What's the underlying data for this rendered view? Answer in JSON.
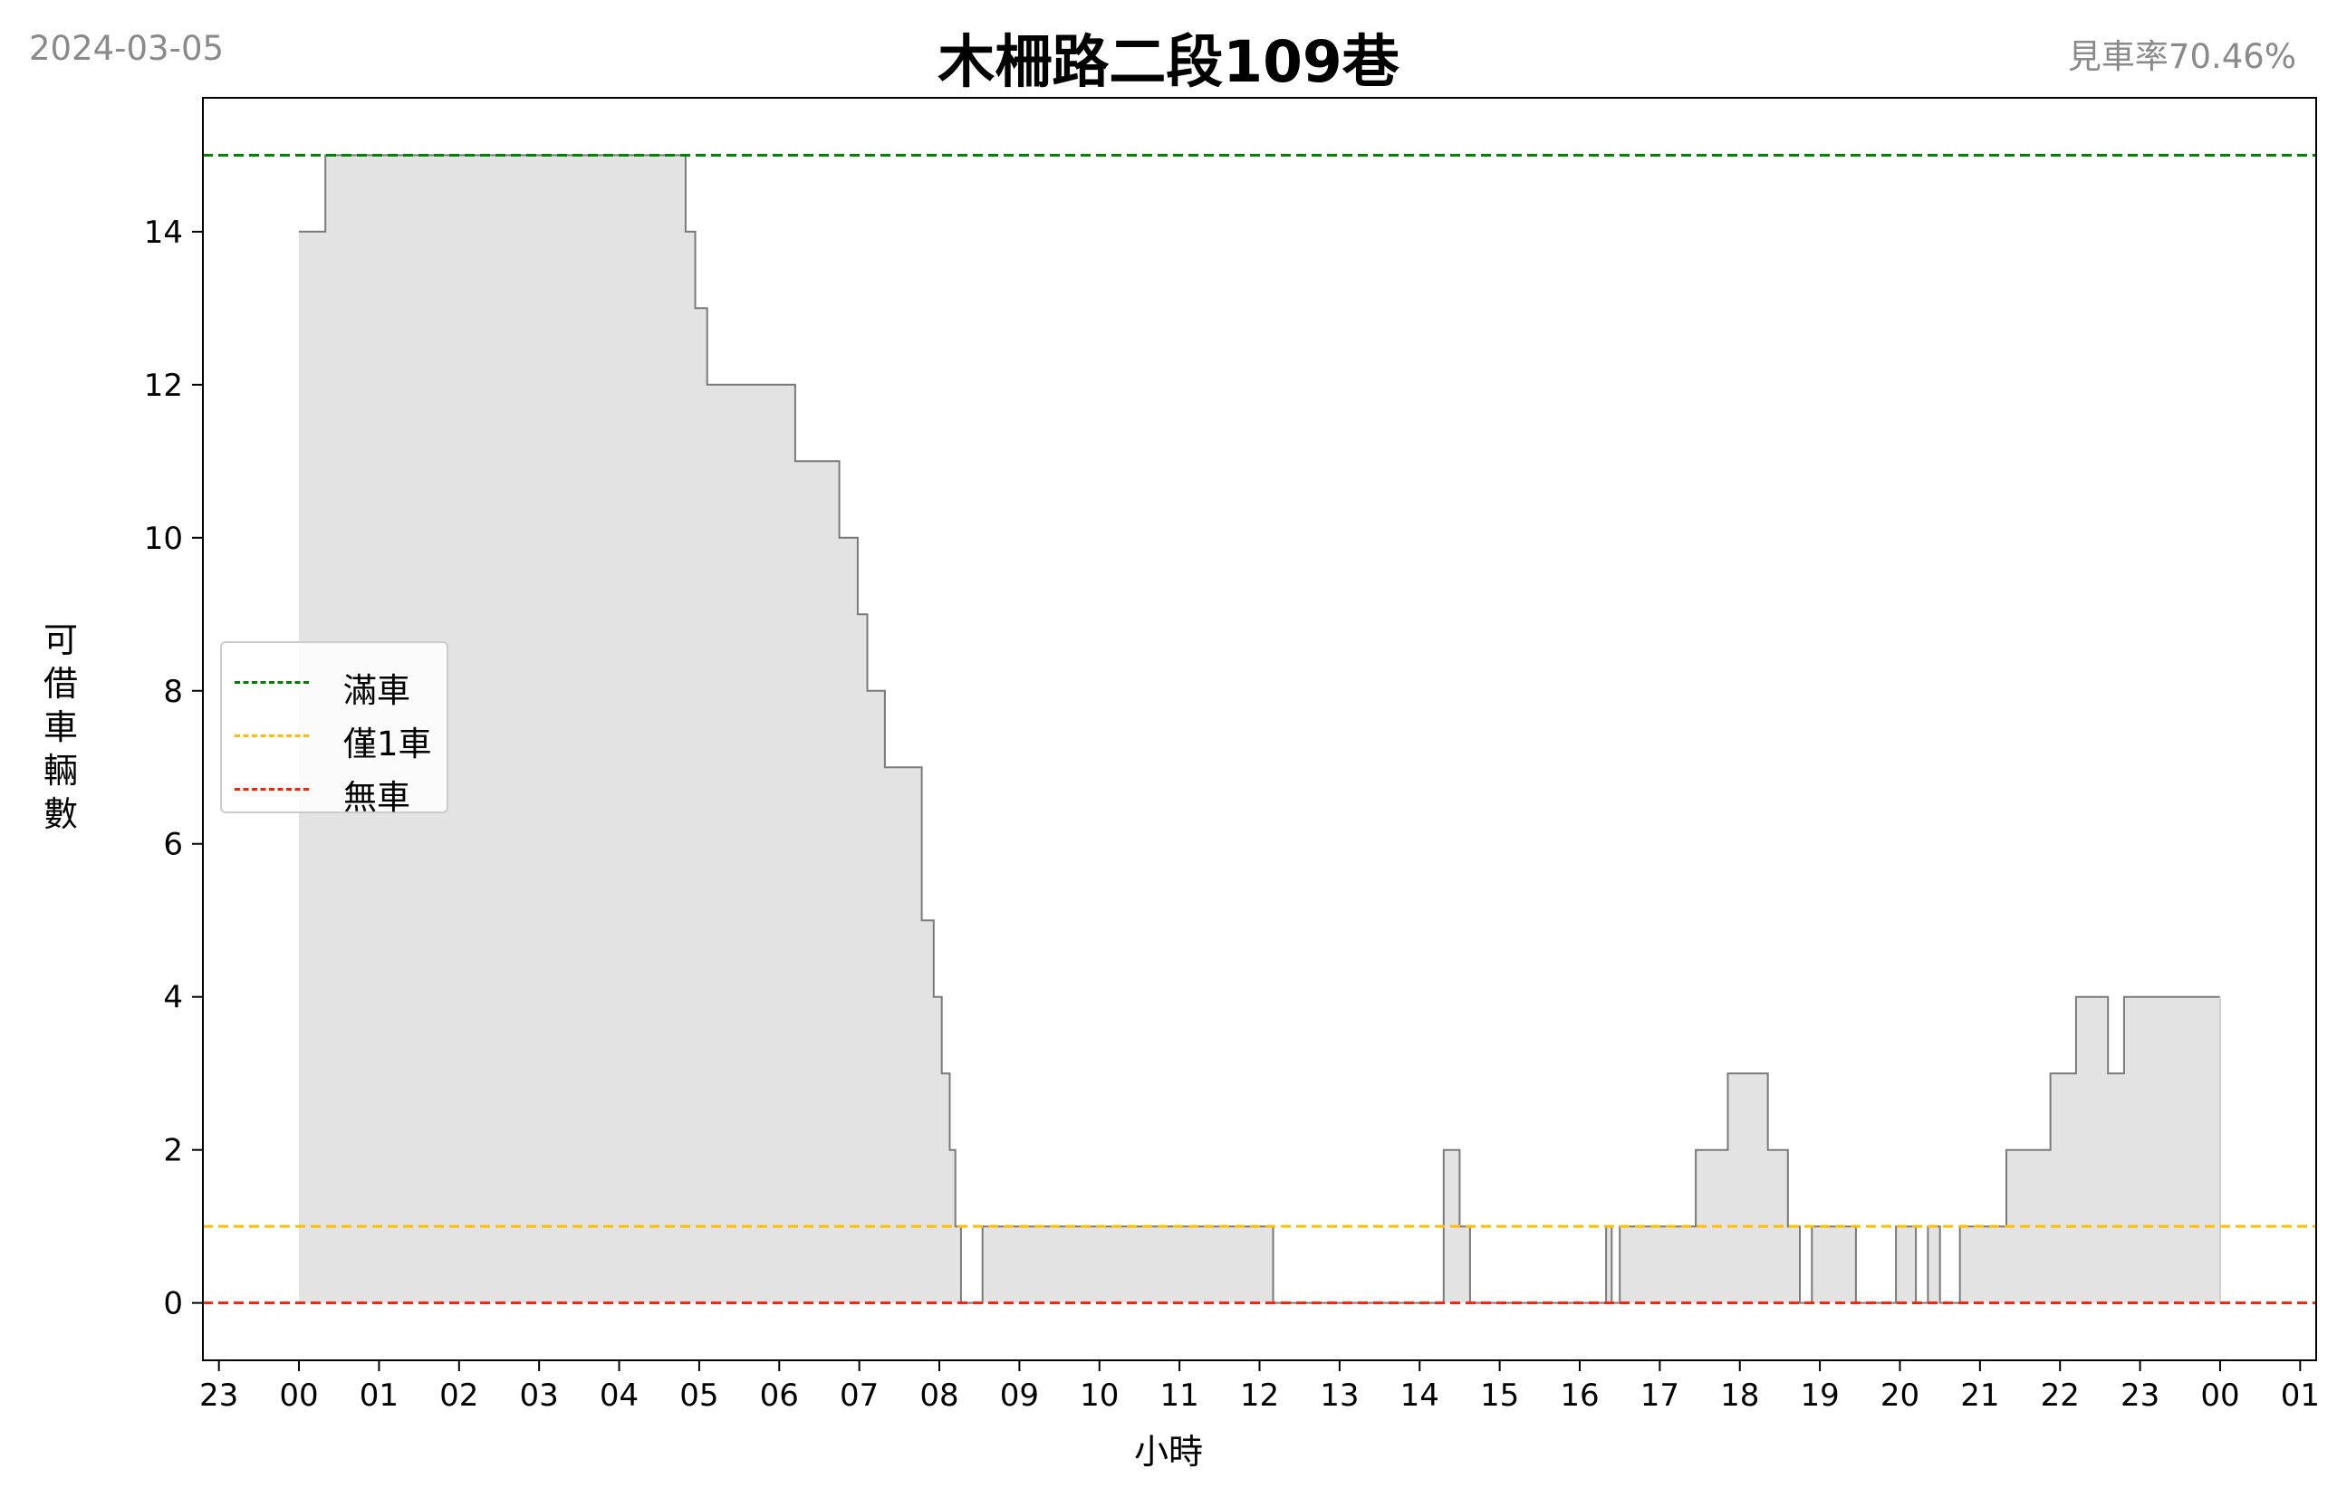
{
  "header": {
    "date": "2024-03-05",
    "title": "木柵路二段109巷",
    "availability_rate": "見車率70.46%"
  },
  "colors": {
    "full": "#008000",
    "one_left": "#ffbf00",
    "empty": "#ff2000",
    "fill": "#e3e3e3",
    "line": "#7a7a7a"
  },
  "legend": [
    {
      "label": "滿車",
      "color_key": "full"
    },
    {
      "label": "僅1車",
      "color_key": "one_left"
    },
    {
      "label": "無車",
      "color_key": "empty"
    }
  ],
  "chart_data": {
    "type": "area",
    "title": "木柵路二段109巷",
    "xlabel": "小時",
    "ylabel": "可借車輛數",
    "xlim": [
      -1.2,
      25.2
    ],
    "ylim": [
      -0.75,
      15.75
    ],
    "xticks": [
      -1,
      0,
      1,
      2,
      3,
      4,
      5,
      6,
      7,
      8,
      9,
      10,
      11,
      12,
      13,
      14,
      15,
      16,
      17,
      18,
      19,
      20,
      21,
      22,
      23,
      24,
      25
    ],
    "xtick_labels": [
      "23",
      "00",
      "01",
      "02",
      "03",
      "04",
      "05",
      "06",
      "07",
      "08",
      "09",
      "10",
      "11",
      "12",
      "13",
      "14",
      "15",
      "16",
      "17",
      "18",
      "19",
      "20",
      "21",
      "22",
      "23",
      "00",
      "01"
    ],
    "yticks": [
      0,
      2,
      4,
      6,
      8,
      10,
      12,
      14
    ],
    "ytick_labels": [
      "0",
      "2",
      "4",
      "6",
      "8",
      "10",
      "12",
      "14"
    ],
    "reference_lines": [
      {
        "label": "滿車",
        "y": 15,
        "color": "#008000"
      },
      {
        "label": "僅1車",
        "y": 1,
        "color": "#ffbf00"
      },
      {
        "label": "無車",
        "y": 0,
        "color": "#ff2000"
      }
    ],
    "series": [
      {
        "step": "post",
        "x": [
          0,
          0.33,
          4.83,
          4.95,
          5.1,
          5.2,
          6.2,
          6.75,
          6.98,
          7.1,
          7.23,
          7.32,
          7.78,
          7.93,
          8.03,
          8.13,
          8.2,
          8.27,
          8.54,
          12.17,
          14.3,
          14.5,
          14.63,
          16.33,
          16.4,
          16.5,
          17.45,
          17.85,
          18.35,
          18.6,
          18.75,
          18.9,
          19.45,
          19.95,
          20.2,
          20.35,
          20.5,
          20.75,
          21.33,
          21.88,
          22.2,
          22.6,
          22.8,
          24
        ],
        "y": [
          14,
          15,
          14,
          13,
          12,
          12,
          11,
          10,
          9,
          8,
          8,
          7,
          5,
          4,
          3,
          2,
          1,
          0,
          1,
          0,
          2,
          1,
          0,
          1,
          0,
          1,
          2,
          3,
          2,
          1,
          0,
          1,
          0,
          1,
          0,
          1,
          0,
          1,
          2,
          3,
          4,
          3,
          4,
          4
        ]
      }
    ],
    "grid": false,
    "legend_position": "center-left"
  }
}
